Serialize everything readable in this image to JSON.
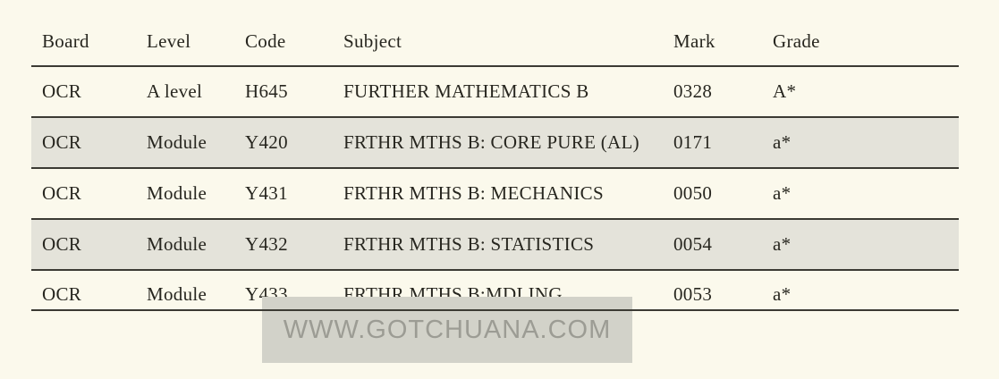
{
  "table": {
    "columns": {
      "board": "Board",
      "level": "Level",
      "code": "Code",
      "subject": "Subject",
      "mark": "Mark",
      "grade": "Grade"
    },
    "rows": [
      {
        "board": "OCR",
        "level": "A level",
        "code": "H645",
        "subject": "FURTHER MATHEMATICS B",
        "mark": "0328",
        "grade": "A*"
      },
      {
        "board": "OCR",
        "level": "Module",
        "code": "Y420",
        "subject": "FRTHR MTHS B: CORE PURE (AL)",
        "mark": "0171",
        "grade": "a*"
      },
      {
        "board": "OCR",
        "level": "Module",
        "code": "Y431",
        "subject": "FRTHR MTHS B: MECHANICS",
        "mark": "0050",
        "grade": "a*"
      },
      {
        "board": "OCR",
        "level": "Module",
        "code": "Y432",
        "subject": "FRTHR MTHS B: STATISTICS",
        "mark": "0054",
        "grade": "a*"
      },
      {
        "board": "OCR",
        "level": "Module",
        "code": "Y433",
        "subject": "FRTHR MTHS B:MDLING",
        "mark": "0053",
        "grade": "a*"
      }
    ]
  },
  "watermark": {
    "text": "WWW.GOTCHUANA.COM"
  },
  "colors": {
    "background": "#fbf9ec",
    "row_alternate": "#e4e3da",
    "rule": "#3b3a33",
    "text": "#27261f",
    "watermark_background": "#d2d2c9",
    "watermark_text": "#9c9c94"
  }
}
